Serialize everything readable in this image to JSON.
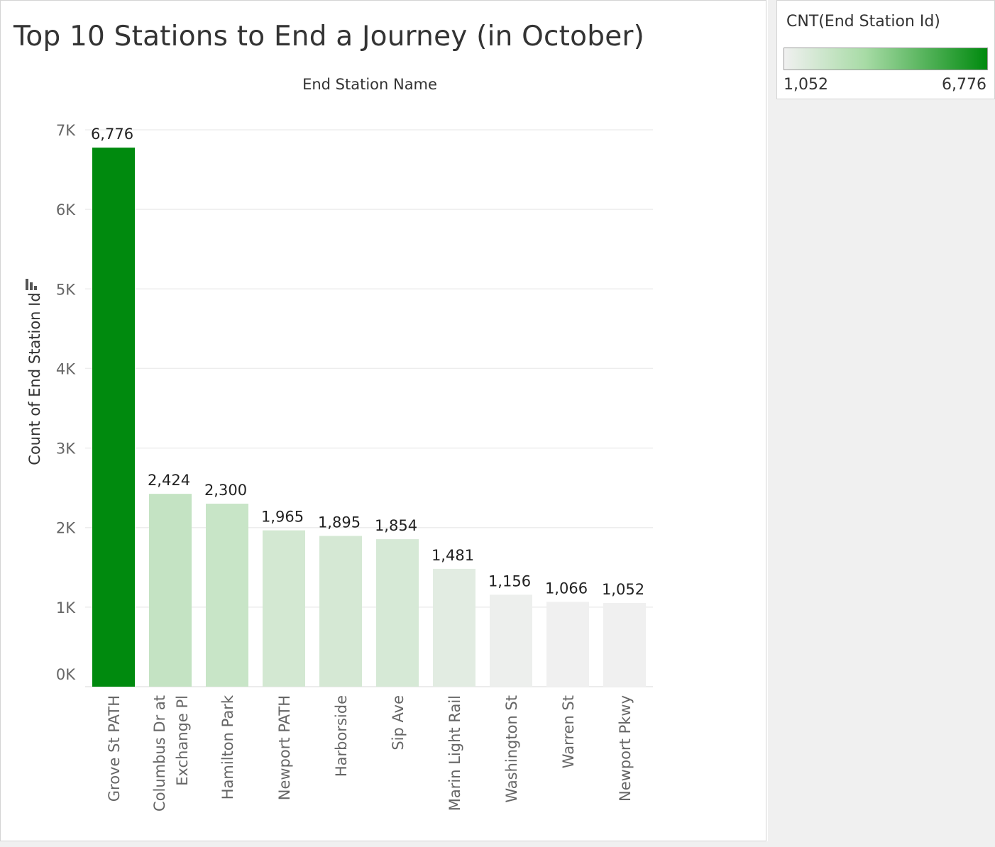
{
  "title": "Top 10 Stations to End a Journey (in October)",
  "legend": {
    "title": "CNT(End Station Id)",
    "min_label": "1,052",
    "max_label": "6,776",
    "color_low": "#f0f0f0",
    "color_high": "#008a0e"
  },
  "chart_data": {
    "type": "bar",
    "title": "Top 10 Stations to End a Journey (in October)",
    "xlabel": "End Station Name",
    "ylabel": "Count of End Station Id",
    "ylim": [
      0,
      7000
    ],
    "yticks": [
      {
        "value": 0,
        "label": "0K"
      },
      {
        "value": 1000,
        "label": "1K"
      },
      {
        "value": 2000,
        "label": "2K"
      },
      {
        "value": 3000,
        "label": "3K"
      },
      {
        "value": 4000,
        "label": "4K"
      },
      {
        "value": 5000,
        "label": "5K"
      },
      {
        "value": 6000,
        "label": "6K"
      },
      {
        "value": 7000,
        "label": "7K"
      }
    ],
    "grid": true,
    "legend_position": "top-right",
    "categories": [
      [
        "Grove St PATH"
      ],
      [
        "Columbus Dr at",
        "Exchange Pl"
      ],
      [
        "Hamilton Park"
      ],
      [
        "Newport PATH"
      ],
      [
        "Harborside"
      ],
      [
        "Sip Ave"
      ],
      [
        "Marin Light Rail"
      ],
      [
        "Washington St"
      ],
      [
        "Warren St"
      ],
      [
        "Newport Pkwy"
      ]
    ],
    "values": [
      6776,
      2424,
      2300,
      1965,
      1895,
      1854,
      1481,
      1156,
      1066,
      1052
    ],
    "value_labels": [
      "6,776",
      "2,424",
      "2,300",
      "1,965",
      "1,895",
      "1,854",
      "1,481",
      "1,156",
      "1,066",
      "1,052"
    ]
  }
}
